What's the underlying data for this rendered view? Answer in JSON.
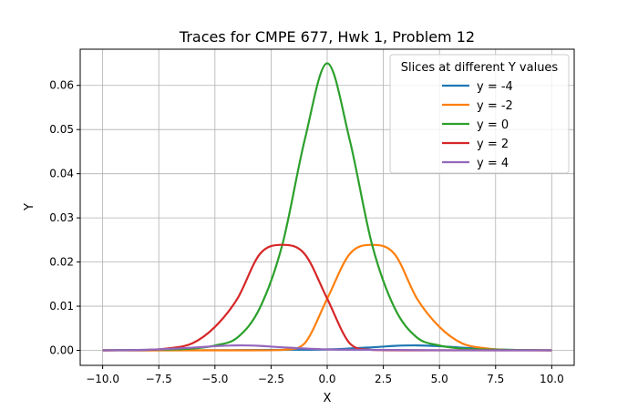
{
  "chart_data": {
    "type": "line",
    "title": "Traces for CMPE 677, Hwk 1, Problem 12",
    "xlabel": "X",
    "ylabel": "Y",
    "xlim": [
      -11,
      11
    ],
    "ylim": [
      -0.0034,
      0.0682
    ],
    "x_ticks": [
      -10,
      -7.5,
      -5,
      -2.5,
      0,
      2.5,
      5,
      7.5,
      10
    ],
    "x_tick_labels": [
      "−10.0",
      "−7.5",
      "−5.0",
      "−2.5",
      "0.0",
      "2.5",
      "5.0",
      "7.5",
      "10.0"
    ],
    "y_ticks": [
      0,
      0.01,
      0.02,
      0.03,
      0.04,
      0.05,
      0.06
    ],
    "y_tick_labels": [
      "0.00",
      "0.01",
      "0.02",
      "0.03",
      "0.04",
      "0.05",
      "0.06"
    ],
    "grid": true,
    "legend": {
      "title": "Slices at different Y values",
      "placement": "top-right"
    },
    "series": [
      {
        "name": "y = -4",
        "color": "#1f77b4",
        "x": [
          -10,
          -6,
          -4,
          -2,
          0,
          2,
          3,
          4,
          5,
          6,
          8,
          10
        ],
        "values": [
          0,
          2e-05,
          5e-05,
          0.00011,
          0.00021,
          0.00069,
          0.00101,
          0.00112,
          0.00095,
          0.00061,
          0.00013,
          0
        ]
      },
      {
        "name": "y = -2",
        "color": "#ff7f0e",
        "x": [
          -10,
          -4,
          -2,
          -1,
          0,
          1,
          2,
          3,
          4,
          5,
          6,
          7,
          8,
          10
        ],
        "values": [
          0,
          0,
          0.0001,
          0.0016,
          0.0117,
          0.0218,
          0.0239,
          0.0218,
          0.0117,
          0.0053,
          0.0016,
          0.0005,
          0.0001,
          0
        ]
      },
      {
        "name": "y = 0",
        "color": "#2ca02c",
        "x": [
          -10,
          -7,
          -6,
          -5,
          -4,
          -3,
          -2,
          -1,
          0,
          1,
          2,
          3,
          4,
          5,
          6,
          7,
          10
        ],
        "values": [
          0,
          0.0002,
          0.0004,
          0.0011,
          0.0029,
          0.0096,
          0.0239,
          0.0477,
          0.065,
          0.0477,
          0.0239,
          0.0096,
          0.0029,
          0.0011,
          0.0004,
          0.0002,
          0
        ]
      },
      {
        "name": "y = 2",
        "color": "#d62728",
        "x": [
          -10,
          -8,
          -7,
          -6,
          -5,
          -4,
          -3,
          -2,
          -1,
          0,
          1,
          2,
          4,
          10
        ],
        "values": [
          0,
          0.0001,
          0.0005,
          0.0016,
          0.0053,
          0.0117,
          0.0218,
          0.0239,
          0.0218,
          0.0117,
          0.0016,
          0.0001,
          0,
          0
        ]
      },
      {
        "name": "y = 4",
        "color": "#9467bd",
        "x": [
          -10,
          -8,
          -6,
          -5,
          -4,
          -3,
          -2,
          0,
          2,
          4,
          6,
          10
        ],
        "values": [
          0,
          0.00013,
          0.00061,
          0.00095,
          0.00112,
          0.00101,
          0.00069,
          0.00021,
          0.00011,
          5e-05,
          2e-05,
          0
        ]
      }
    ]
  }
}
